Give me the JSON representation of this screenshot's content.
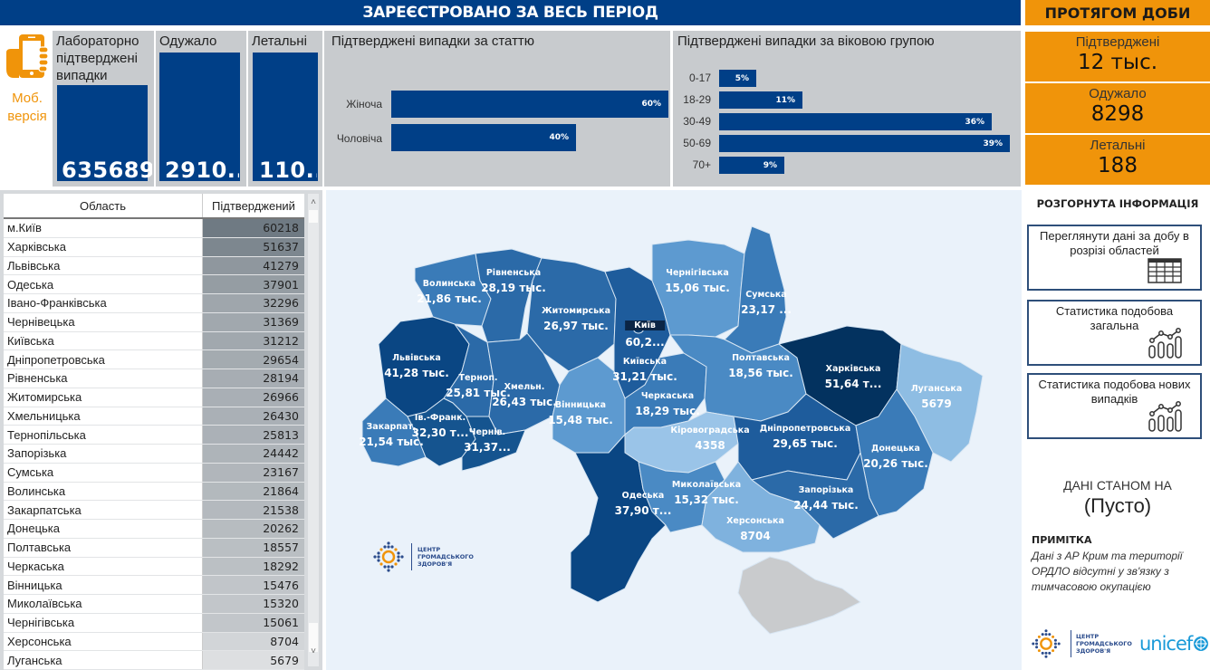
{
  "header": {
    "title": "ЗАРЕЄСТРОВАНО ЗА ВЕСЬ ПЕРІОД",
    "day_title": "ПРОТЯГОМ ДОБИ",
    "colors": {
      "primary": "#003f87",
      "accent": "#f0940a"
    }
  },
  "mobile": {
    "icon": "mobile-phone-hand-icon",
    "label_line1": "Моб.",
    "label_line2": "версія"
  },
  "kpis": [
    {
      "title": "Лабораторно підтверджені випадки",
      "value": "635689"
    },
    {
      "title": "Одужало",
      "value": "2910..."
    },
    {
      "title": "Летальні",
      "value": "110..."
    }
  ],
  "chart_data": [
    {
      "type": "bar",
      "orientation": "horizontal",
      "title": "Підтверджені випадки за статтю",
      "categories": [
        "Жіноча",
        "Чоловіча"
      ],
      "values": [
        60,
        40
      ],
      "labels": [
        "60%",
        "40%"
      ],
      "unit": "%"
    },
    {
      "type": "bar",
      "orientation": "horizontal",
      "title": "Підтверджені випадки за віковою групою",
      "categories": [
        "0-17",
        "18-29",
        "30-49",
        "50-69",
        "70+"
      ],
      "values": [
        5,
        11,
        36,
        39,
        9
      ],
      "labels": [
        "5%",
        "11%",
        "36%",
        "39%",
        "9%"
      ],
      "unit": "%"
    }
  ],
  "day": [
    {
      "title": "Підтверджені",
      "value": "12 тыс."
    },
    {
      "title": "Одужало",
      "value": "8298"
    },
    {
      "title": "Летальні",
      "value": "188"
    }
  ],
  "table": {
    "headers": [
      "Область",
      "Підтверджений"
    ],
    "rows": [
      [
        "м.Київ",
        "60218"
      ],
      [
        "Харківська",
        "51637"
      ],
      [
        "Львівська",
        "41279"
      ],
      [
        "Одеська",
        "37901"
      ],
      [
        "Івано-Франківська",
        "32296"
      ],
      [
        "Чернівецька",
        "31369"
      ],
      [
        "Київська",
        "31212"
      ],
      [
        "Дніпропетровська",
        "29654"
      ],
      [
        "Рівненська",
        "28194"
      ],
      [
        "Житомирська",
        "26966"
      ],
      [
        "Хмельницька",
        "26430"
      ],
      [
        "Тернопільська",
        "25813"
      ],
      [
        "Запорізька",
        "24442"
      ],
      [
        "Сумська",
        "23167"
      ],
      [
        "Волинська",
        "21864"
      ],
      [
        "Закарпатська",
        "21538"
      ],
      [
        "Донецька",
        "20262"
      ],
      [
        "Полтавська",
        "18557"
      ],
      [
        "Черкаська",
        "18292"
      ],
      [
        "Вінницька",
        "15476"
      ],
      [
        "Миколаївська",
        "15320"
      ],
      [
        "Чернігівська",
        "15061"
      ],
      [
        "Херсонська",
        "8704"
      ],
      [
        "Луганська",
        "5679"
      ]
    ],
    "scroll_up": "˄",
    "scroll_down": "˅"
  },
  "map": {
    "regions": [
      {
        "name": "Волинська",
        "value": "21,86 тыс."
      },
      {
        "name": "Рівненська",
        "value": "28,19 тыс."
      },
      {
        "name": "Житомирська",
        "value": "26,97 тыс."
      },
      {
        "name": "Київ",
        "value": "60,2..."
      },
      {
        "name": "Київська",
        "value": "31,21 тыс."
      },
      {
        "name": "Чернігівська",
        "value": "15,06 тыс."
      },
      {
        "name": "Сумська",
        "value": "23,17 ..."
      },
      {
        "name": "Львівська",
        "value": "41,28 тыс."
      },
      {
        "name": "Терноп.",
        "value": "25,81 тыс."
      },
      {
        "name": "Хмельн.",
        "value": "26,43 тыс."
      },
      {
        "name": "Вінницька",
        "value": "15,48 тыс."
      },
      {
        "name": "Черкаська",
        "value": "18,29 тыс."
      },
      {
        "name": "Полтавська",
        "value": "18,56 тыс."
      },
      {
        "name": "Харківська",
        "value": "51,64 т..."
      },
      {
        "name": "Луганська",
        "value": "5679"
      },
      {
        "name": "Закарпат.",
        "value": "21,54 тыс."
      },
      {
        "name": "Ів.-Франк.",
        "value": "32,30 т..."
      },
      {
        "name": "Чернів.",
        "value": "31,37..."
      },
      {
        "name": "Кіровоградська",
        "value": "4358"
      },
      {
        "name": "Дніпропетровська",
        "value": "29,65 тыс."
      },
      {
        "name": "Донецька",
        "value": "20,26 тыс."
      },
      {
        "name": "Одеська",
        "value": "37,90 т..."
      },
      {
        "name": "Миколаївська",
        "value": "15,32 тыс."
      },
      {
        "name": "Запорізька",
        "value": "24,44 тыс."
      },
      {
        "name": "Херсонська",
        "value": "8704"
      }
    ],
    "logo_lines": [
      "ЦЕНТР",
      "ГРОМАДСЬКОГО",
      "ЗДОРОВ'Я"
    ]
  },
  "right_panel": {
    "title": "РОЗГОРНУТА ІНФОРМАЦІЯ",
    "buttons": [
      {
        "label": "Переглянути дані за добу в розрізі областей",
        "icon": "table-icon"
      },
      {
        "label": "Статистика подобова загальна",
        "icon": "chart-icon"
      },
      {
        "label": "Статистика подобова нових випадків",
        "icon": "chart-icon"
      }
    ],
    "as_of_label": "ДАНІ СТАНОМ НА",
    "as_of_value": "(Пусто)",
    "note_title": "ПРИМІТКА",
    "note_text": "Дані з АР Крим та території ОРДЛО відсутні у зв'язку з тимчасовою окупацією",
    "logo_lines": [
      "ЦЕНТР",
      "ГРОМАДСЬКОГО",
      "ЗДОРОВ'Я"
    ],
    "unicef": "unicef"
  }
}
